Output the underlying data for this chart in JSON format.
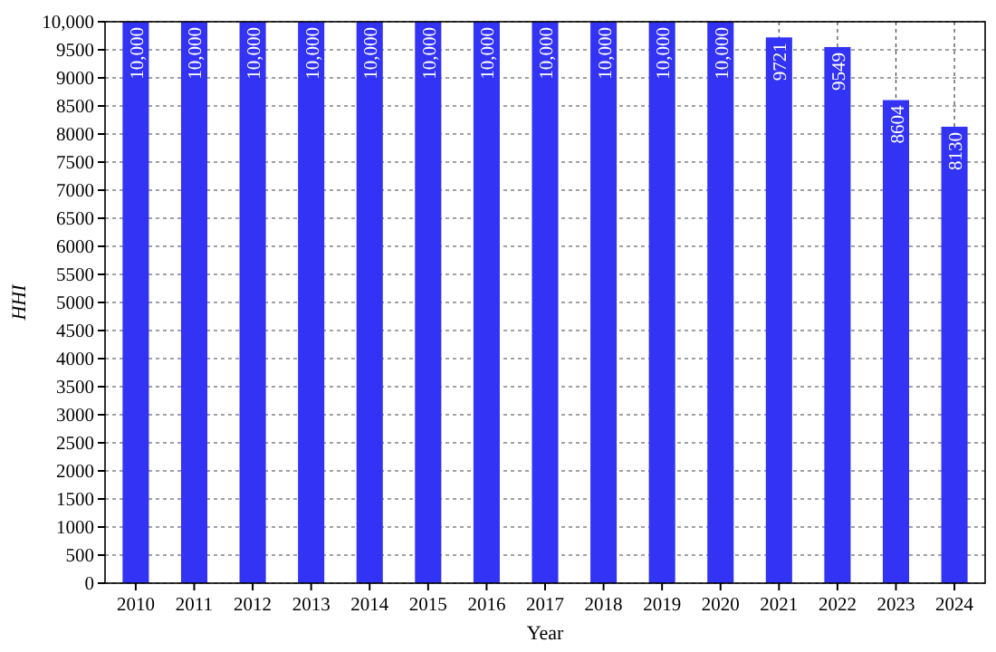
{
  "chart_data": {
    "type": "bar",
    "xlabel": "Year",
    "ylabel": "HHI",
    "categories": [
      "2010",
      "2011",
      "2012",
      "2013",
      "2014",
      "2015",
      "2016",
      "2017",
      "2018",
      "2019",
      "2020",
      "2021",
      "2022",
      "2023",
      "2024"
    ],
    "values": [
      10000,
      10000,
      10000,
      10000,
      10000,
      10000,
      10000,
      10000,
      10000,
      10000,
      10000,
      9721,
      9549,
      8604,
      8130
    ],
    "value_labels": [
      "10,000",
      "10,000",
      "10,000",
      "10,000",
      "10,000",
      "10,000",
      "10,000",
      "10,000",
      "10,000",
      "10,000",
      "10,000",
      "9721",
      "9549",
      "8604",
      "8130"
    ],
    "color": "#3333f5",
    "ylim": [
      0,
      10000
    ],
    "yticks": [
      0,
      500,
      1000,
      1500,
      2000,
      2500,
      3000,
      3500,
      4000,
      4500,
      5000,
      5500,
      6000,
      6500,
      7000,
      7500,
      8000,
      8500,
      9000,
      9500,
      {
        "value": 10000,
        "label": "10,000"
      }
    ],
    "grid": true
  }
}
